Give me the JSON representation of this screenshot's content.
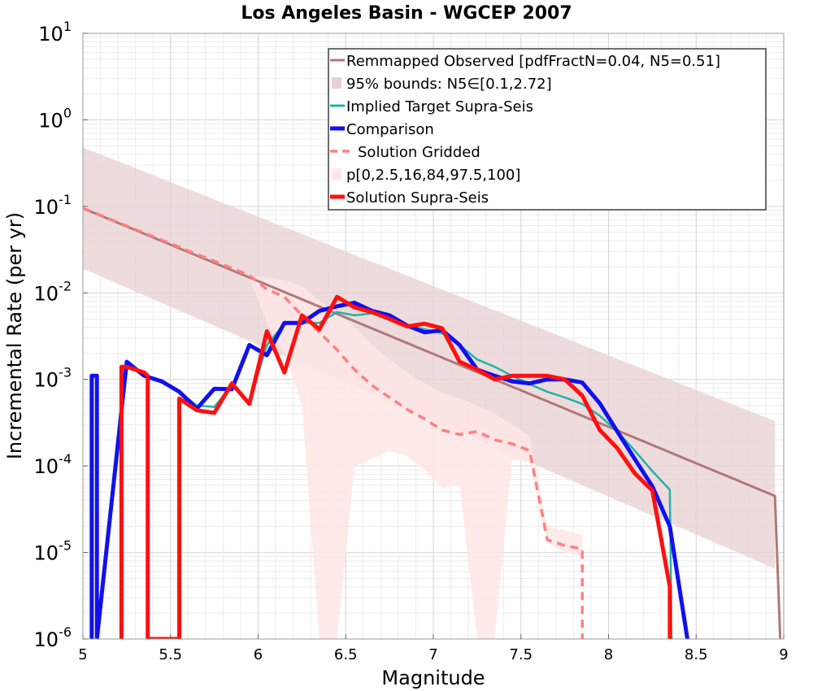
{
  "chart_data": {
    "type": "line",
    "title": "Los Angeles Basin - WGCEP 2007",
    "xlabel": "Magnitude",
    "ylabel": "Incremental Rate (per yr)",
    "xlim": [
      5,
      9
    ],
    "ylim": [
      1e-06,
      10
    ],
    "yscale": "log",
    "grid": true,
    "legend_position": "top-right",
    "x_ticks": [
      "5",
      "5.5",
      "6",
      "6.5",
      "7",
      "7.5",
      "8",
      "8.5",
      "9"
    ],
    "y_ticks": [
      {
        "base": "10",
        "exp": "-6"
      },
      {
        "base": "10",
        "exp": "-5"
      },
      {
        "base": "10",
        "exp": "-4"
      },
      {
        "base": "10",
        "exp": "-3"
      },
      {
        "base": "10",
        "exp": "-2"
      },
      {
        "base": "10",
        "exp": "-1"
      },
      {
        "base": "10",
        "exp": "0"
      },
      {
        "base": "10",
        "exp": "1"
      }
    ],
    "legend": [
      {
        "label": "Remmapped Observed [pdfFractN=0.04, N5=0.51]",
        "style": "line",
        "color": "#b07878"
      },
      {
        "label": "95% bounds: N5∈[0.1,2.72]",
        "style": "band",
        "color": "#e8d0d2"
      },
      {
        "label": "Implied Target Supra-Seis",
        "style": "line",
        "color": "#20b2aa"
      },
      {
        "label": "Comparison",
        "style": "line-thick",
        "color": "#1010ee"
      },
      {
        "label": "Solution Gridded",
        "style": "dashed",
        "color": "#ff8080"
      },
      {
        "label": "p[0,2.5,16,84,97.5,100]",
        "style": "band",
        "color": "#ffe6e6"
      },
      {
        "label": "Solution Supra-Seis",
        "style": "line-thick",
        "color": "#ff1010"
      }
    ],
    "series": [
      {
        "name": "Remmapped Observed [pdfFractN=0.04, N5=0.51]",
        "color": "#b07878",
        "x": [
          5.0,
          8.95,
          8.98
        ],
        "y": [
          0.095,
          4.5e-05,
          1e-06
        ]
      },
      {
        "name": "95% bounds: N5∈[0.1,2.72]",
        "kind": "band",
        "color": "#e8d0d2",
        "x": [
          5.0,
          8.95
        ],
        "upper": [
          0.48,
          0.00033
        ],
        "lower": [
          0.019,
          6.5e-06
        ]
      },
      {
        "name": "Implied Target Supra-Seis",
        "color": "#20b2aa",
        "x": [
          5.25,
          5.35,
          5.45,
          5.55,
          5.65,
          5.75,
          5.85,
          5.95,
          6.05,
          6.15,
          6.25,
          6.35,
          6.45,
          6.55,
          6.65,
          6.75,
          6.85,
          6.95,
          7.05,
          7.15,
          7.25,
          7.35,
          7.45,
          7.55,
          7.65,
          7.75,
          7.85,
          7.95,
          8.05,
          8.15,
          8.25,
          8.35,
          8.36
        ],
        "y": [
          0.0015,
          0.0011,
          0.00095,
          0.00072,
          0.0005,
          0.00048,
          0.00085,
          0.00052,
          0.0025,
          0.0044,
          0.0045,
          0.0045,
          0.006,
          0.0055,
          0.0058,
          0.005,
          0.0042,
          0.0038,
          0.0034,
          0.0025,
          0.0017,
          0.0014,
          0.0011,
          0.00088,
          0.00072,
          0.00062,
          0.00052,
          0.00038,
          0.00025,
          0.00015,
          8.7e-05,
          5.3e-05,
          1e-06
        ]
      },
      {
        "name": "Comparison",
        "color": "#1010ee",
        "x": [
          5.05,
          5.05,
          5.08,
          5.08,
          5.25,
          5.35,
          5.45,
          5.55,
          5.65,
          5.75,
          5.85,
          5.95,
          6.05,
          6.15,
          6.25,
          6.35,
          6.45,
          6.55,
          6.65,
          6.75,
          6.85,
          6.95,
          7.05,
          7.15,
          7.25,
          7.35,
          7.45,
          7.55,
          7.65,
          7.75,
          7.85,
          7.95,
          8.05,
          8.15,
          8.25,
          8.35,
          8.45
        ],
        "y": [
          1e-06,
          0.0011,
          0.0011,
          1e-06,
          0.0016,
          0.0011,
          0.00095,
          0.00072,
          0.00046,
          0.00078,
          0.00077,
          0.0025,
          0.0019,
          0.0045,
          0.0045,
          0.0062,
          0.007,
          0.0077,
          0.0062,
          0.0055,
          0.0042,
          0.0035,
          0.0037,
          0.0025,
          0.0013,
          0.0011,
          0.00095,
          0.0009,
          0.001,
          0.001,
          0.00092,
          0.00053,
          0.00025,
          0.00012,
          5.8e-05,
          2e-05,
          1e-06
        ]
      },
      {
        "name": "Solution Gridded",
        "color": "#ff8080",
        "x": [
          5.0,
          5.95,
          6.05,
          6.15,
          6.25,
          6.35,
          6.45,
          6.55,
          6.65,
          6.75,
          6.85,
          6.95,
          7.05,
          7.15,
          7.25,
          7.35,
          7.45,
          7.55,
          7.65,
          7.75,
          7.85,
          7.85
        ],
        "y": [
          0.095,
          0.016,
          0.011,
          0.009,
          0.0055,
          0.0035,
          0.0022,
          0.0013,
          0.00085,
          0.00062,
          0.00045,
          0.00035,
          0.00026,
          0.00023,
          0.00025,
          0.0002,
          0.00018,
          0.00015,
          1.4e-05,
          1.2e-05,
          1.1e-05,
          1e-06
        ]
      },
      {
        "name": "p[0,2.5,16,84,97.5,100]",
        "kind": "band",
        "color": "#ffe6e6",
        "x": [
          5.95,
          6.05,
          6.15,
          6.25,
          6.35,
          6.45,
          6.55,
          6.65,
          6.75,
          6.85,
          6.95,
          7.05,
          7.15,
          7.25,
          7.35,
          7.45,
          7.55,
          7.65,
          7.75,
          7.85
        ],
        "upper": [
          0.016,
          0.015,
          0.014,
          0.012,
          0.008,
          0.006,
          0.004,
          0.0025,
          0.0017,
          0.0012,
          0.0009,
          0.0007,
          0.0006,
          0.0005,
          0.0004,
          0.0003,
          0.00022,
          2e-05,
          1.8e-05,
          1.6e-05
        ],
        "lower": [
          0.015,
          0.0045,
          0.002,
          0.0005,
          1e-06,
          1e-06,
          0.0001,
          0.00012,
          0.00015,
          0.00013,
          9e-05,
          5.5e-05,
          6e-05,
          1e-06,
          1e-06,
          0.00012,
          0.00011,
          1.3e-05,
          1e-05,
          9e-06
        ]
      },
      {
        "name": "Solution Supra-Seis",
        "color": "#ff1010",
        "x": [
          5.22,
          5.22,
          5.25,
          5.35,
          5.37,
          5.37,
          5.55,
          5.55,
          5.65,
          5.75,
          5.85,
          5.95,
          6.05,
          6.15,
          6.25,
          6.35,
          6.45,
          6.55,
          6.65,
          6.75,
          6.85,
          6.95,
          7.05,
          7.15,
          7.25,
          7.35,
          7.45,
          7.55,
          7.65,
          7.75,
          7.85,
          7.95,
          8.05,
          8.15,
          8.25,
          8.35,
          8.35
        ],
        "y": [
          1e-06,
          0.0014,
          0.0014,
          0.0012,
          0.0011,
          1e-06,
          1e-06,
          0.0006,
          0.00044,
          0.00041,
          0.0009,
          0.00052,
          0.0036,
          0.0012,
          0.0055,
          0.0038,
          0.009,
          0.0068,
          0.006,
          0.005,
          0.0041,
          0.0044,
          0.0039,
          0.0016,
          0.0013,
          0.001,
          0.0011,
          0.0011,
          0.0011,
          0.001,
          0.00065,
          0.00026,
          0.00016,
          8.2e-05,
          5.2e-05,
          4e-06,
          1e-06
        ]
      }
    ]
  }
}
